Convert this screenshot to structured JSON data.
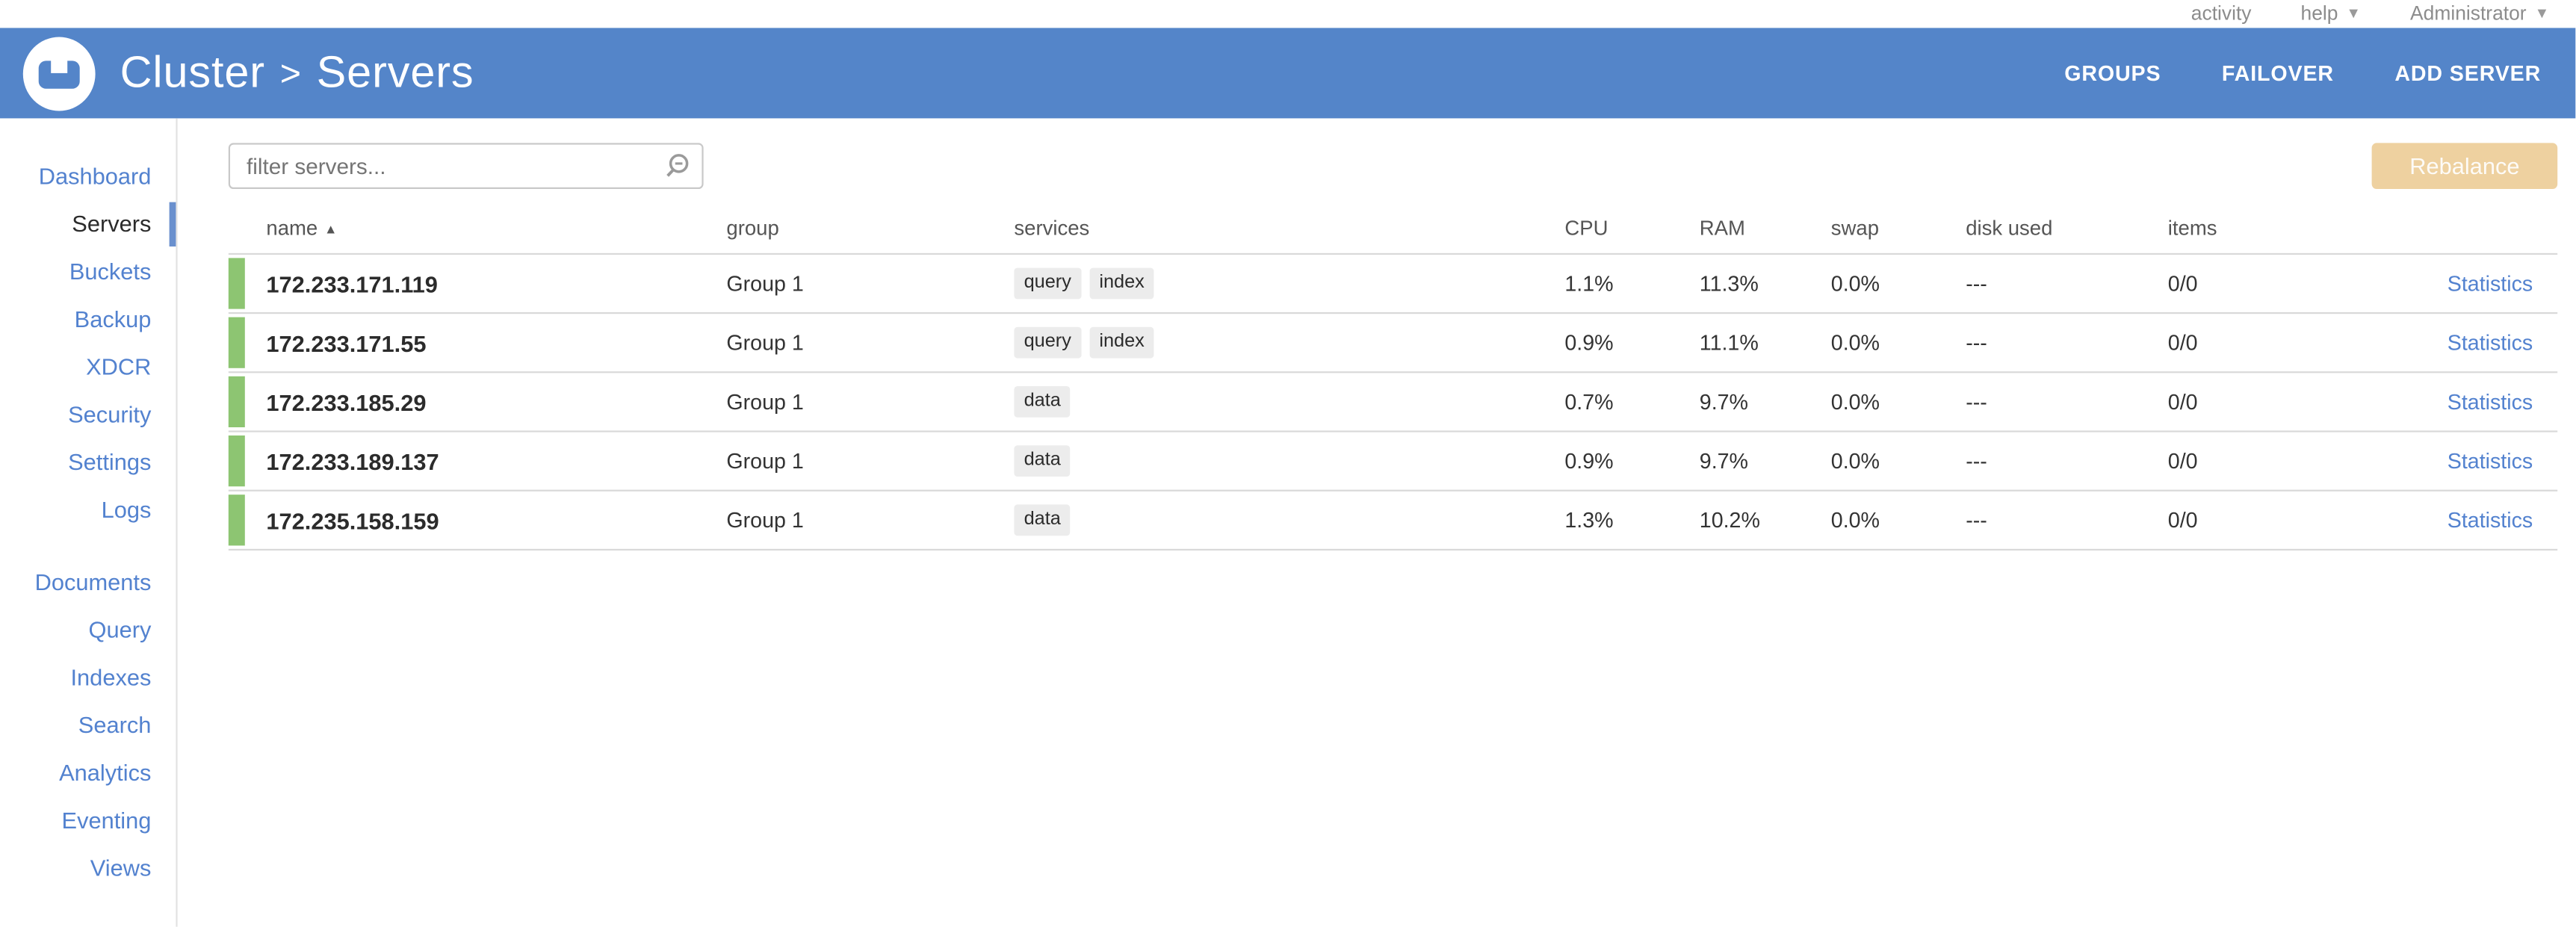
{
  "topbar": {
    "activity_label": "activity",
    "help_label": "help",
    "user_label": "Administrator"
  },
  "header": {
    "cluster_label": "Cluster",
    "separator": ">",
    "page_label": "Servers",
    "actions": [
      {
        "label": "GROUPS"
      },
      {
        "label": "FAILOVER"
      },
      {
        "label": "ADD SERVER"
      }
    ]
  },
  "sidebar": {
    "primary_items": [
      {
        "label": "Dashboard",
        "selected": false
      },
      {
        "label": "Servers",
        "selected": true
      },
      {
        "label": "Buckets",
        "selected": false
      },
      {
        "label": "Backup",
        "selected": false
      },
      {
        "label": "XDCR",
        "selected": false
      },
      {
        "label": "Security",
        "selected": false
      },
      {
        "label": "Settings",
        "selected": false
      },
      {
        "label": "Logs",
        "selected": false
      }
    ],
    "secondary_items": [
      {
        "label": "Documents",
        "selected": false
      },
      {
        "label": "Query",
        "selected": false
      },
      {
        "label": "Indexes",
        "selected": false
      },
      {
        "label": "Search",
        "selected": false
      },
      {
        "label": "Analytics",
        "selected": false
      },
      {
        "label": "Eventing",
        "selected": false
      },
      {
        "label": "Views",
        "selected": false
      }
    ]
  },
  "toolbar": {
    "filter_placeholder": "filter servers...",
    "rebalance_label": "Rebalance"
  },
  "servers_table": {
    "columns": [
      "name",
      "group",
      "services",
      "CPU",
      "RAM",
      "swap",
      "disk used",
      "items"
    ],
    "sort_column": "name",
    "sort_icon": "▲",
    "statistics_label": "Statistics",
    "rows": [
      {
        "name": "172.233.171.119",
        "group": "Group 1",
        "services": [
          "query",
          "index"
        ],
        "cpu": "1.1%",
        "ram": "11.3%",
        "swap": "0.0%",
        "disk_used": "---",
        "items": "0/0",
        "status_color": "#8dc572"
      },
      {
        "name": "172.233.171.55",
        "group": "Group 1",
        "services": [
          "query",
          "index"
        ],
        "cpu": "0.9%",
        "ram": "11.1%",
        "swap": "0.0%",
        "disk_used": "---",
        "items": "0/0",
        "status_color": "#8dc572"
      },
      {
        "name": "172.233.185.29",
        "group": "Group 1",
        "services": [
          "data"
        ],
        "cpu": "0.7%",
        "ram": "9.7%",
        "swap": "0.0%",
        "disk_used": "---",
        "items": "0/0",
        "status_color": "#8dc572"
      },
      {
        "name": "172.233.189.137",
        "group": "Group 1",
        "services": [
          "data"
        ],
        "cpu": "0.9%",
        "ram": "9.7%",
        "swap": "0.0%",
        "disk_used": "---",
        "items": "0/0",
        "status_color": "#8dc572"
      },
      {
        "name": "172.235.158.159",
        "group": "Group 1",
        "services": [
          "data"
        ],
        "cpu": "1.3%",
        "ram": "10.2%",
        "swap": "0.0%",
        "disk_used": "---",
        "items": "0/0",
        "status_color": "#8dc572"
      }
    ]
  },
  "colors": {
    "header_blue": "#5485c9",
    "link_blue": "#5382cf",
    "healthy_green": "#8dc572",
    "rebalance_tan": "#eed1a0"
  }
}
